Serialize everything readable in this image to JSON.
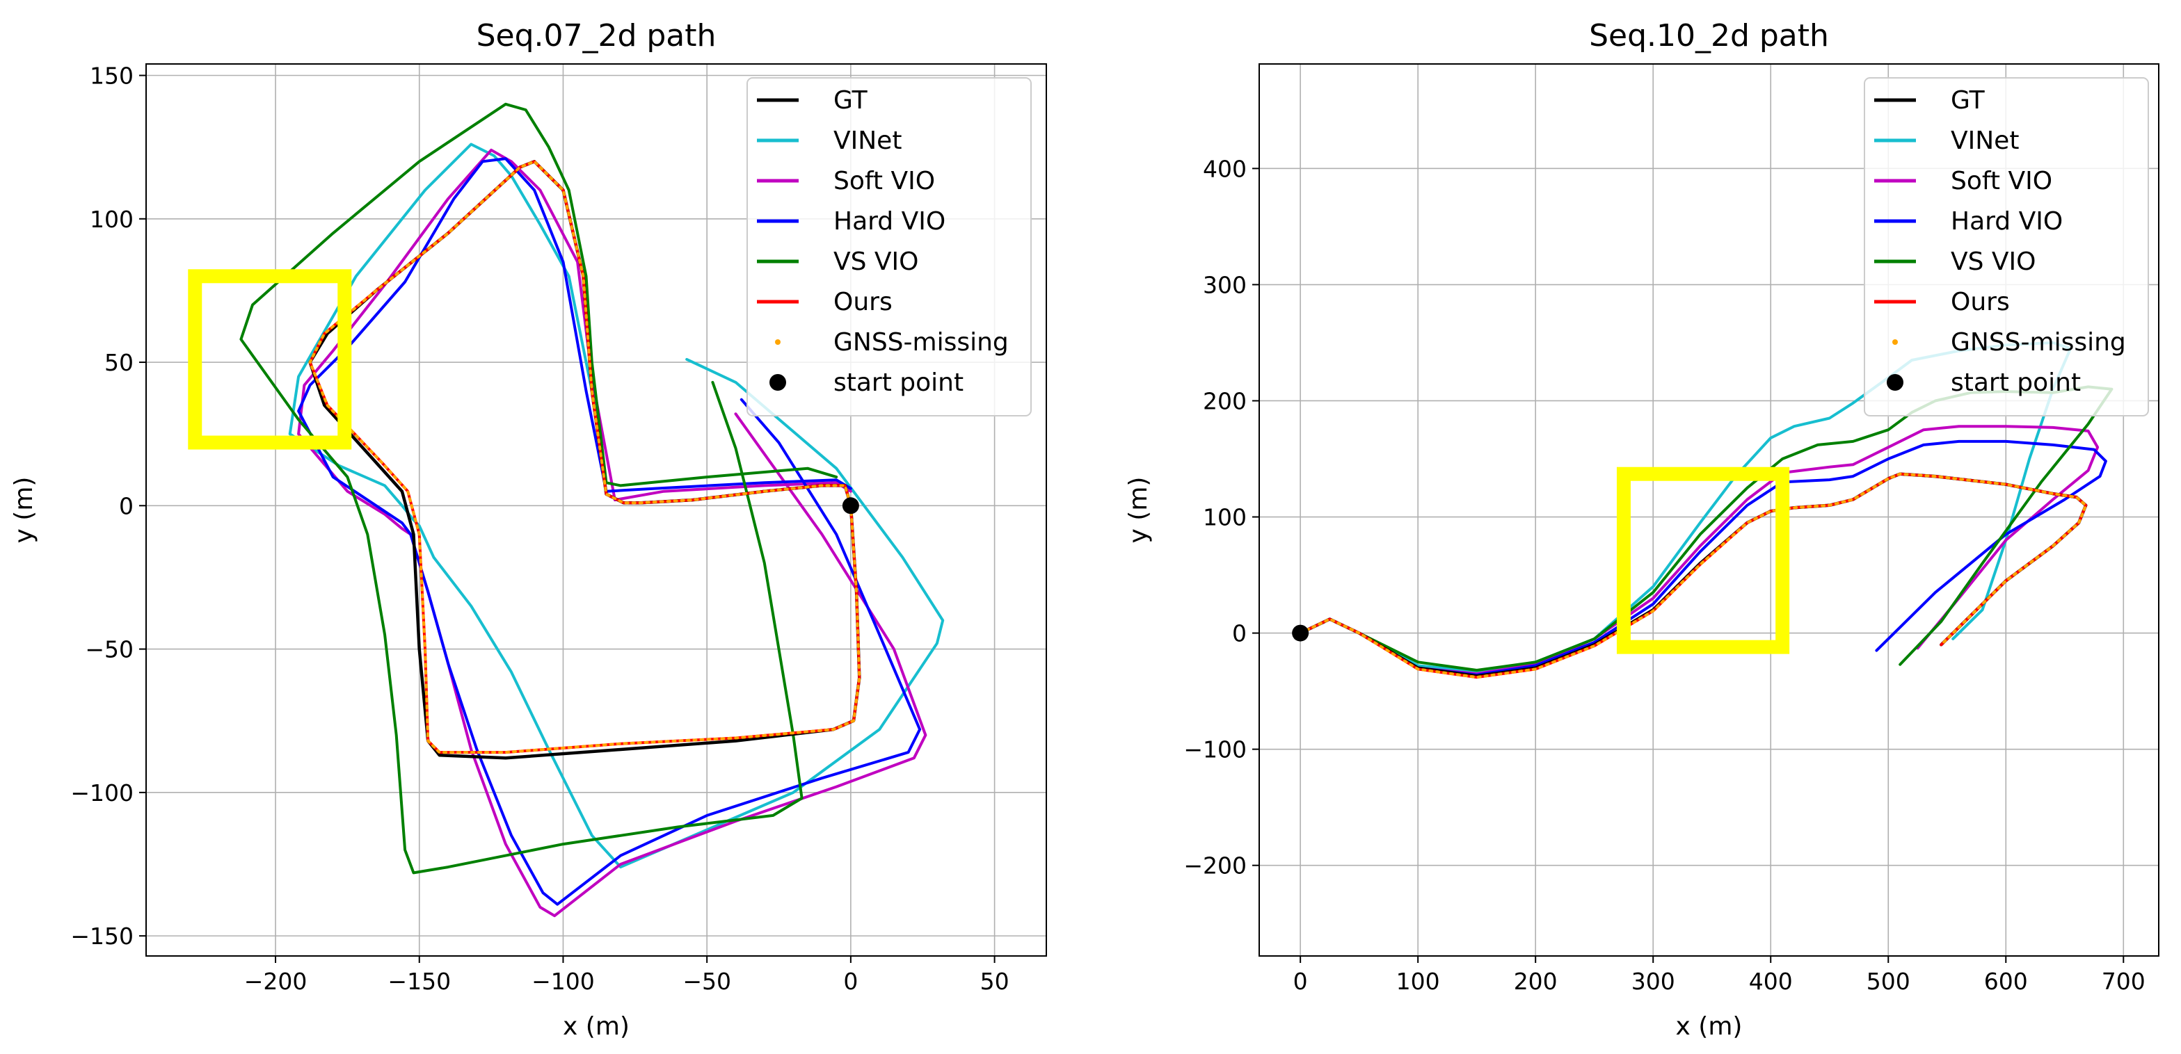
{
  "chart_data": [
    {
      "type": "line",
      "title": "Seq.07_2d path",
      "xlabel": "x (m)",
      "ylabel": "y (m)",
      "xlim": [
        -245,
        68
      ],
      "ylim": [
        -157,
        154
      ],
      "xticks": [
        -200,
        -150,
        -100,
        -50,
        0,
        50
      ],
      "yticks": [
        150,
        100,
        50,
        0,
        -50,
        -100,
        -150
      ],
      "xtick_labels": [
        "−200",
        "−150",
        "−100",
        "−50",
        "0",
        "50"
      ],
      "ytick_labels": [
        "150",
        "100",
        "50",
        "0",
        "−50",
        "−100",
        "−150"
      ],
      "grid": true,
      "legend_position": "upper-right",
      "start_point": [
        0,
        0
      ],
      "highlight_box": {
        "x": [
          -228,
          -176
        ],
        "y": [
          22,
          80
        ],
        "color": "#FFFF00"
      },
      "series": [
        {
          "name": "VINet",
          "color": "#17BECF",
          "x": [
            -57,
            -40,
            -5,
            18,
            32,
            30,
            10,
            -20,
            -50,
            -80,
            -90,
            -105,
            -118,
            -132,
            -145,
            -150,
            -152,
            -156,
            -162,
            -178,
            -195,
            -192,
            -172,
            -148,
            -132,
            -124,
            -118,
            -108,
            -98,
            -90
          ],
          "y": [
            51,
            43,
            13,
            -18,
            -40,
            -48,
            -78,
            -100,
            -113,
            -126,
            -115,
            -85,
            -58,
            -35,
            -18,
            -7,
            -5,
            0,
            7,
            14,
            25,
            45,
            80,
            110,
            126,
            122,
            115,
            98,
            80,
            40
          ]
        },
        {
          "name": "Soft VIO",
          "color": "#C000C0",
          "x": [
            -40,
            -30,
            -10,
            15,
            26,
            22,
            -5,
            -40,
            -80,
            -103,
            -108,
            -120,
            -132,
            -140,
            -147,
            -150,
            -153,
            -156,
            -162,
            -175,
            -192,
            -190,
            -180,
            -162,
            -140,
            -125,
            -118,
            -108,
            -95,
            -90,
            -82,
            -65,
            -30,
            -5,
            0
          ],
          "y": [
            32,
            18,
            -10,
            -50,
            -80,
            -88,
            -98,
            -110,
            -125,
            -143,
            -140,
            -118,
            -85,
            -55,
            -30,
            -20,
            -10,
            -8,
            -3,
            5,
            25,
            42,
            54,
            77,
            107,
            124,
            120,
            110,
            85,
            45,
            2,
            5,
            7,
            8,
            5
          ]
        },
        {
          "name": "Hard VIO",
          "color": "#0000FF",
          "x": [
            -38,
            -25,
            -5,
            10,
            24,
            20,
            -10,
            -50,
            -80,
            -102,
            -107,
            -118,
            -130,
            -140,
            -147,
            -150,
            -153,
            -156,
            -165,
            -180,
            -192,
            -188,
            -175,
            -155,
            -138,
            -128,
            -120,
            -110,
            -100,
            -92,
            -85,
            -68,
            -30,
            -5,
            0
          ],
          "y": [
            37,
            22,
            -10,
            -45,
            -78,
            -86,
            -95,
            -108,
            -122,
            -139,
            -135,
            -115,
            -85,
            -55,
            -30,
            -20,
            -10,
            -6,
            0,
            10,
            33,
            42,
            55,
            78,
            107,
            120,
            121,
            110,
            85,
            40,
            5,
            6,
            8,
            9,
            6
          ]
        },
        {
          "name": "VS VIO",
          "color": "#008000",
          "x": [
            -48,
            -40,
            -30,
            -20,
            -17,
            -27,
            -60,
            -100,
            -140,
            -152,
            -155,
            -158,
            -162,
            -168,
            -175,
            -192,
            -212,
            -208,
            -180,
            -150,
            -120,
            -113,
            -105,
            -98,
            -92,
            -90,
            -85,
            -80,
            -50,
            -15,
            -5
          ],
          "y": [
            43,
            20,
            -20,
            -80,
            -102,
            -108,
            -112,
            -118,
            -126,
            -128,
            -120,
            -80,
            -45,
            -10,
            10,
            30,
            58,
            70,
            95,
            120,
            140,
            138,
            125,
            110,
            80,
            50,
            8,
            7,
            10,
            13,
            10
          ]
        },
        {
          "name": "GT",
          "color": "#000000",
          "x": [
            0,
            2,
            3,
            1,
            -6,
            -40,
            -80,
            -120,
            -143,
            -147,
            -150,
            -152,
            -156,
            -165,
            -183,
            -188,
            -182,
            -165,
            -140,
            -115,
            -110,
            -100,
            -93,
            -90,
            -85,
            -79,
            -73,
            -55,
            -30,
            -10,
            -2,
            0
          ],
          "y": [
            0,
            -30,
            -60,
            -75,
            -78,
            -82,
            -85,
            -88,
            -87,
            -82,
            -50,
            -10,
            5,
            15,
            35,
            50,
            60,
            75,
            95,
            118,
            120,
            110,
            80,
            40,
            4,
            1,
            1,
            2,
            5,
            7,
            7,
            0
          ]
        },
        {
          "name": "Ours",
          "color": "#FF0000",
          "x": [
            0,
            2,
            3,
            1,
            -6,
            -40,
            -80,
            -120,
            -143,
            -147,
            -148,
            -150,
            -154,
            -163,
            -182,
            -188,
            -183,
            -165,
            -140,
            -115,
            -110,
            -100,
            -93,
            -90,
            -85,
            -79,
            -73,
            -55,
            -30,
            -10,
            -2,
            0
          ],
          "y": [
            0,
            -30,
            -60,
            -75,
            -78,
            -81,
            -83,
            -86,
            -86,
            -82,
            -50,
            -10,
            5,
            15,
            35,
            50,
            60,
            75,
            95,
            118,
            120,
            110,
            80,
            40,
            4,
            1,
            1,
            2,
            5,
            7,
            7,
            0
          ]
        },
        {
          "name": "GNSS-missing",
          "color": "#FFA500",
          "x": [
            0,
            2,
            3,
            1,
            -6,
            -40,
            -80,
            -120,
            -143,
            -147,
            -148,
            -150,
            -154,
            -163,
            -182,
            -188,
            -183,
            -165,
            -140,
            -115,
            -110,
            -100,
            -93,
            -90,
            -85,
            -79,
            -73,
            -55,
            -30,
            -10,
            -2,
            0
          ],
          "y": [
            0,
            -30,
            -60,
            -75,
            -78,
            -81,
            -83,
            -86,
            -86,
            -82,
            -50,
            -10,
            5,
            15,
            35,
            50,
            60,
            75,
            95,
            118,
            120,
            110,
            80,
            40,
            4,
            1,
            1,
            2,
            5,
            7,
            7,
            0
          ]
        }
      ],
      "legend": [
        "GT",
        "VINet",
        "Soft VIO",
        "Hard VIO",
        "VS VIO",
        "Ours",
        "GNSS-missing",
        "start point"
      ]
    },
    {
      "type": "line",
      "title": "Seq.10_2d path",
      "xlabel": "x (m)",
      "ylabel": "y (m)",
      "xlim": [
        -35,
        730
      ],
      "ylim": [
        -278,
        490
      ],
      "xticks": [
        0,
        100,
        200,
        300,
        400,
        500,
        600,
        700
      ],
      "yticks": [
        400,
        300,
        200,
        100,
        0,
        -100,
        -200
      ],
      "xtick_labels": [
        "0",
        "100",
        "200",
        "300",
        "400",
        "500",
        "600",
        "700"
      ],
      "ytick_labels": [
        "400",
        "300",
        "200",
        "100",
        "0",
        "−100",
        "−200"
      ],
      "grid": true,
      "legend_position": "upper-right",
      "start_point": [
        0,
        0
      ],
      "highlight_box": {
        "x": [
          275,
          410
        ],
        "y": [
          -12,
          137
        ],
        "color": "#FFFF00"
      },
      "series": [
        {
          "name": "VINet",
          "color": "#17BECF",
          "x": [
            0,
            25,
            50,
            100,
            150,
            200,
            250,
            300,
            340,
            370,
            400,
            420,
            450,
            470,
            500,
            520,
            560,
            600,
            640,
            655,
            640,
            620,
            600,
            580,
            555
          ],
          "y": [
            0,
            12,
            0,
            -28,
            -33,
            -25,
            -5,
            40,
            95,
            135,
            168,
            178,
            185,
            198,
            220,
            235,
            243,
            248,
            250,
            245,
            210,
            150,
            80,
            20,
            -5
          ]
        },
        {
          "name": "Soft VIO",
          "color": "#C000C0",
          "x": [
            0,
            25,
            50,
            100,
            150,
            200,
            250,
            300,
            340,
            380,
            410,
            450,
            470,
            500,
            530,
            560,
            600,
            640,
            670,
            678,
            670,
            640,
            600,
            560,
            525
          ],
          "y": [
            0,
            12,
            0,
            -30,
            -35,
            -27,
            -5,
            30,
            75,
            115,
            138,
            143,
            145,
            160,
            175,
            178,
            178,
            177,
            174,
            160,
            140,
            115,
            80,
            30,
            -13
          ]
        },
        {
          "name": "Hard VIO",
          "color": "#0000FF",
          "x": [
            0,
            25,
            50,
            100,
            150,
            200,
            250,
            300,
            340,
            380,
            410,
            450,
            470,
            500,
            530,
            560,
            600,
            640,
            675,
            685,
            680,
            650,
            600,
            540,
            490
          ],
          "y": [
            0,
            12,
            0,
            -30,
            -36,
            -28,
            -8,
            25,
            70,
            110,
            130,
            132,
            135,
            150,
            162,
            165,
            165,
            162,
            158,
            148,
            135,
            115,
            85,
            35,
            -15
          ]
        },
        {
          "name": "VS VIO",
          "color": "#008000",
          "x": [
            0,
            25,
            50,
            100,
            150,
            200,
            250,
            300,
            340,
            380,
            410,
            440,
            470,
            500,
            520,
            540,
            570,
            600,
            640,
            670,
            690,
            670,
            630,
            580,
            545,
            510
          ],
          "y": [
            0,
            12,
            0,
            -25,
            -32,
            -25,
            -5,
            35,
            85,
            125,
            150,
            162,
            165,
            175,
            190,
            200,
            207,
            208,
            207,
            212,
            210,
            180,
            130,
            60,
            10,
            -27
          ]
        },
        {
          "name": "GT",
          "color": "#000000",
          "x": [
            0,
            25,
            50,
            100,
            150,
            200,
            250,
            300,
            340,
            380,
            400,
            420,
            450,
            470,
            500,
            510,
            540,
            600,
            640,
            660,
            668,
            662,
            640,
            620,
            600,
            575,
            555,
            545
          ],
          "y": [
            0,
            12,
            0,
            -30,
            -37,
            -30,
            -10,
            20,
            60,
            95,
            105,
            108,
            110,
            115,
            133,
            137,
            135,
            128,
            120,
            117,
            110,
            95,
            75,
            60,
            45,
            20,
            0,
            -10
          ]
        },
        {
          "name": "Ours",
          "color": "#FF0000",
          "x": [
            0,
            25,
            50,
            100,
            150,
            200,
            250,
            300,
            340,
            380,
            400,
            420,
            450,
            470,
            500,
            510,
            540,
            600,
            640,
            660,
            668,
            662,
            640,
            620,
            600,
            575,
            555,
            545
          ],
          "y": [
            0,
            12,
            0,
            -31,
            -38,
            -31,
            -11,
            19,
            59,
            95,
            105,
            108,
            110,
            115,
            133,
            137,
            135,
            128,
            120,
            117,
            110,
            95,
            75,
            60,
            45,
            20,
            0,
            -10
          ]
        },
        {
          "name": "GNSS-missing",
          "color": "#FFA500",
          "x": [
            0,
            25,
            50,
            100,
            150,
            200,
            250,
            300,
            340,
            380,
            400,
            420,
            450,
            470,
            500,
            510,
            540,
            600,
            640,
            660,
            668,
            662,
            640,
            620,
            600,
            575,
            555,
            545
          ],
          "y": [
            0,
            12,
            0,
            -31,
            -38,
            -31,
            -11,
            19,
            59,
            95,
            105,
            108,
            110,
            115,
            133,
            137,
            135,
            128,
            120,
            117,
            110,
            95,
            75,
            60,
            45,
            20,
            0,
            -10
          ]
        }
      ],
      "legend": [
        "GT",
        "VINet",
        "Soft VIO",
        "Hard VIO",
        "VS VIO",
        "Ours",
        "GNSS-missing",
        "start point"
      ]
    }
  ]
}
